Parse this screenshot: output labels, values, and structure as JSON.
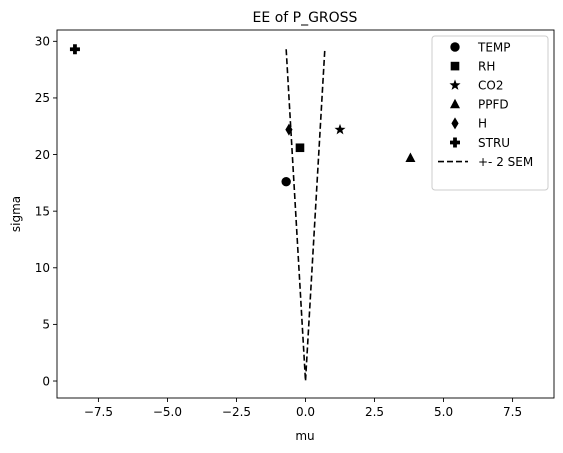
{
  "chart_data": {
    "type": "scatter",
    "title": "EE of P_GROSS",
    "xlabel": "mu",
    "ylabel": "sigma",
    "xlim": [
      -9,
      9
    ],
    "ylim": [
      -1.5,
      31.0
    ],
    "xticks": [
      -7.5,
      -5.0,
      -2.5,
      0.0,
      2.5,
      5.0,
      7.5
    ],
    "xtick_labels": [
      "−7.5",
      "−5.0",
      "−2.5",
      "0.0",
      "2.5",
      "5.0",
      "7.5"
    ],
    "yticks": [
      0,
      5,
      10,
      15,
      20,
      25,
      30
    ],
    "ytick_labels": [
      "0",
      "5",
      "10",
      "15",
      "20",
      "25",
      "30"
    ],
    "grid": false,
    "legend_position": "top-right",
    "series": [
      {
        "name": "TEMP",
        "marker": "circle",
        "x": -0.7,
        "y": 17.6
      },
      {
        "name": "RH",
        "marker": "square",
        "x": -0.2,
        "y": 20.6
      },
      {
        "name": "CO2",
        "marker": "star",
        "x": 1.25,
        "y": 22.2
      },
      {
        "name": "PPFD",
        "marker": "triangle",
        "x": 3.8,
        "y": 19.7
      },
      {
        "name": "H",
        "marker": "diamond",
        "x": -0.6,
        "y": 22.2
      },
      {
        "name": "STRU",
        "marker": "plus",
        "x": -8.35,
        "y": 29.3
      }
    ],
    "sem_line": {
      "name": "+- 2 SEM",
      "style": "dashed",
      "points": [
        [
          -0.7,
          29.3
        ],
        [
          0.0,
          0.0
        ],
        [
          0.7,
          29.3
        ]
      ]
    }
  }
}
